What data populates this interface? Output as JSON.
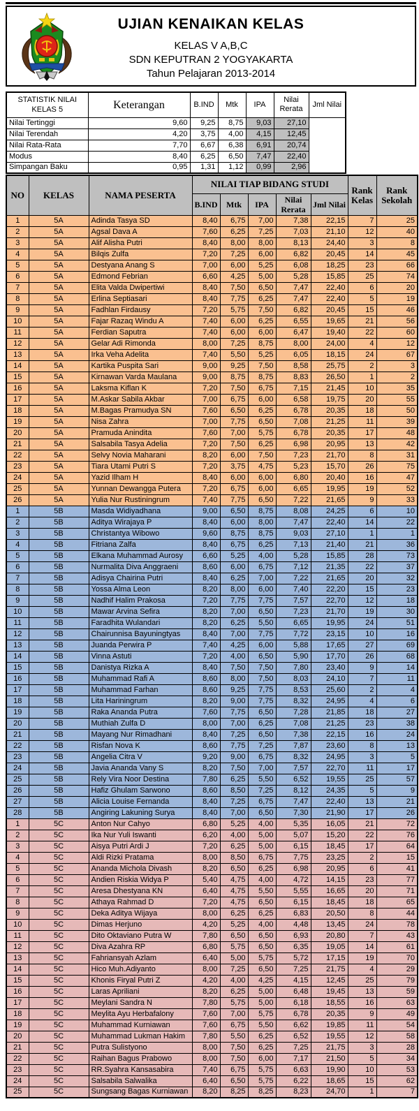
{
  "header": {
    "title": "UJIAN KENAIKAN KELAS",
    "subtitle1": "KELAS V A,B,C",
    "subtitle2": "SDN KEPUTRAN 2 YOGYAKARTA",
    "subtitle3": "Tahun Pelajaran 2013-2014"
  },
  "icons": {
    "logo": "school-crest"
  },
  "colors": {
    "class_5a_band": "#FAC090",
    "class_5b_band": "#9DB7DB",
    "class_5c_band": "#E6B9B8",
    "header_gray": "#BFBFBF",
    "stats_gray": "#BFBFBF",
    "border": "#000000"
  },
  "stats": {
    "row_label": "STATISTIK NILAI KELAS 5",
    "keterangan_label": "Keterangan",
    "columns": [
      "B.IND",
      "Mtk",
      "IPA",
      "Nilai Rerata",
      "Jml Nilai"
    ],
    "rows": [
      {
        "label": "Nilai Tertinggi",
        "values": [
          "9,60",
          "9,25",
          "8,75",
          "9,03",
          "27,10"
        ]
      },
      {
        "label": "Nilai Terendah",
        "values": [
          "4,20",
          "3,75",
          "4,00",
          "4,15",
          "12,45"
        ]
      },
      {
        "label": "Nilai Rata-Rata",
        "values": [
          "7,70",
          "6,67",
          "6,38",
          "6,91",
          "20,74"
        ]
      },
      {
        "label": "Modus",
        "values": [
          "8,40",
          "6,25",
          "6,50",
          "7,47",
          "22,40"
        ]
      },
      {
        "label": "Simpangan Baku",
        "values": [
          "0,95",
          "1,31",
          "1,12",
          "0,99",
          "2,96"
        ]
      }
    ]
  },
  "main_table": {
    "headers": {
      "no": "NO",
      "kelas": "KELAS",
      "nama": "NAMA PESERTA",
      "group": "NILAI TIAP BIDANG STUDI",
      "sub": [
        "B.IND",
        "Mtk",
        "IPA",
        "Nilai Rerata",
        "Jml Nilai"
      ],
      "rank_kelas": "Rank Kelas",
      "rank_sekolah": "Rank Sekolah"
    },
    "sections": [
      {
        "kelas": "5A",
        "color": "#FAC090",
        "rows": [
          [
            "1",
            "Adinda Tasya SD",
            "8,40",
            "6,75",
            "7,00",
            "7,38",
            "22,15",
            "7",
            "25"
          ],
          [
            "2",
            "Agsal Dava A",
            "7,60",
            "6,25",
            "7,25",
            "7,03",
            "21,10",
            "12",
            "40"
          ],
          [
            "3",
            "Alif Alisha Putri",
            "8,40",
            "8,00",
            "8,00",
            "8,13",
            "24,40",
            "3",
            "8"
          ],
          [
            "4",
            "Bilqis Zulfa",
            "7,20",
            "7,25",
            "6,00",
            "6,82",
            "20,45",
            "14",
            "45"
          ],
          [
            "5",
            "Destyana Anang S",
            "7,00",
            "6,00",
            "5,25",
            "6,08",
            "18,25",
            "23",
            "66"
          ],
          [
            "6",
            "Edmond Febrian",
            "6,60",
            "4,25",
            "5,00",
            "5,28",
            "15,85",
            "25",
            "74"
          ],
          [
            "7",
            "Elita Valda Dwipertiwi",
            "8,40",
            "7,50",
            "6,50",
            "7,47",
            "22,40",
            "6",
            "20"
          ],
          [
            "8",
            "Erlina Septiasari",
            "8,40",
            "7,75",
            "6,25",
            "7,47",
            "22,40",
            "5",
            "19"
          ],
          [
            "9",
            "Fadhlan Firdausy",
            "7,20",
            "5,75",
            "7,50",
            "6,82",
            "20,45",
            "15",
            "46"
          ],
          [
            "10",
            "Fajar Razaq Windu A",
            "7,40",
            "6,00",
            "6,25",
            "6,55",
            "19,65",
            "21",
            "56"
          ],
          [
            "11",
            "Ferdian Saputra",
            "7,40",
            "6,00",
            "6,00",
            "6,47",
            "19,40",
            "22",
            "60"
          ],
          [
            "12",
            "Gelar Adi Rimonda",
            "8,00",
            "7,25",
            "8,75",
            "8,00",
            "24,00",
            "4",
            "12"
          ],
          [
            "13",
            "Irka Veha Adelita",
            "7,40",
            "5,50",
            "5,25",
            "6,05",
            "18,15",
            "24",
            "67"
          ],
          [
            "14",
            "Kartika Puspita Sari",
            "9,00",
            "9,25",
            "7,50",
            "8,58",
            "25,75",
            "2",
            "3"
          ],
          [
            "15",
            "Kirnawan Varda Maulana",
            "9,00",
            "8,75",
            "8,75",
            "8,83",
            "26,50",
            "1",
            "2"
          ],
          [
            "16",
            "Laksma Kiflan K",
            "7,20",
            "7,50",
            "6,75",
            "7,15",
            "21,45",
            "10",
            "35"
          ],
          [
            "17",
            "M.Askar Sabila Akbar",
            "7,00",
            "6,75",
            "6,00",
            "6,58",
            "19,75",
            "20",
            "55"
          ],
          [
            "18",
            "M.Bagas Pramudya SN",
            "7,60",
            "6,50",
            "6,25",
            "6,78",
            "20,35",
            "18",
            "50"
          ],
          [
            "19",
            "Nisa Zahra",
            "7,00",
            "7,75",
            "6,50",
            "7,08",
            "21,25",
            "11",
            "39"
          ],
          [
            "20",
            "Pramuda Anindita",
            "7,60",
            "7,00",
            "5,75",
            "6,78",
            "20,35",
            "17",
            "48"
          ],
          [
            "21",
            "Salsabila Tasya Adelia",
            "7,20",
            "7,50",
            "6,25",
            "6,98",
            "20,95",
            "13",
            "42"
          ],
          [
            "22",
            "Selvy Novia Maharani",
            "8,20",
            "6,00",
            "7,50",
            "7,23",
            "21,70",
            "8",
            "31"
          ],
          [
            "23",
            "Tiara Utami Putri S",
            "7,20",
            "3,75",
            "4,75",
            "5,23",
            "15,70",
            "26",
            "75"
          ],
          [
            "24",
            "Yazid Ilham H",
            "8,40",
            "6,00",
            "6,00",
            "6,80",
            "20,40",
            "16",
            "47"
          ],
          [
            "25",
            "Yunnan Dewangga Putera",
            "7,20",
            "6,75",
            "6,00",
            "6,65",
            "19,95",
            "19",
            "52"
          ],
          [
            "26",
            "Yulia Nur Rustiningrum",
            "7,40",
            "7,75",
            "6,50",
            "7,22",
            "21,65",
            "9",
            "33"
          ]
        ]
      },
      {
        "kelas": "5B",
        "color": "#9DB7DB",
        "rows": [
          [
            "1",
            "Masda Widiyadhana",
            "9,00",
            "6,50",
            "8,75",
            "8,08",
            "24,25",
            "6",
            "10"
          ],
          [
            "2",
            "Aditya Wirajaya P",
            "8,40",
            "6,00",
            "8,00",
            "7,47",
            "22,40",
            "14",
            "22"
          ],
          [
            "3",
            "Christantya Wibowo",
            "9,60",
            "8,75",
            "8,75",
            "9,03",
            "27,10",
            "1",
            "1"
          ],
          [
            "4",
            "Fitriana Zalfa",
            "8,40",
            "6,75",
            "6,25",
            "7,13",
            "21,40",
            "21",
            "36"
          ],
          [
            "5",
            "Elkana Muhammad Aurosy",
            "6,60",
            "5,25",
            "4,00",
            "5,28",
            "15,85",
            "28",
            "73"
          ],
          [
            "6",
            "Nurmalita Diva Anggraeni",
            "8,60",
            "6,00",
            "6,75",
            "7,12",
            "21,35",
            "22",
            "37"
          ],
          [
            "7",
            "Adisya Chairina Putri",
            "8,40",
            "6,25",
            "7,00",
            "7,22",
            "21,65",
            "20",
            "32"
          ],
          [
            "8",
            "Yossa Alma Leon",
            "8,20",
            "8,00",
            "6,00",
            "7,40",
            "22,20",
            "15",
            "23"
          ],
          [
            "9",
            "Nadhif Halim Prakosa",
            "7,20",
            "7,75",
            "7,75",
            "7,57",
            "22,70",
            "12",
            "18"
          ],
          [
            "10",
            "Mawar Arvina Sefira",
            "8,20",
            "7,00",
            "6,50",
            "7,23",
            "21,70",
            "19",
            "30"
          ],
          [
            "11",
            "Faradhita Wulandari",
            "8,20",
            "6,25",
            "5,50",
            "6,65",
            "19,95",
            "24",
            "51"
          ],
          [
            "12",
            "Chairunnisa Bayuningtyas",
            "8,40",
            "7,00",
            "7,75",
            "7,72",
            "23,15",
            "10",
            "16"
          ],
          [
            "13",
            "Juanda Perwira P",
            "7,40",
            "4,25",
            "6,00",
            "5,88",
            "17,65",
            "27",
            "69"
          ],
          [
            "14",
            "Vinna Astuti",
            "7,20",
            "4,00",
            "6,50",
            "5,90",
            "17,70",
            "26",
            "68"
          ],
          [
            "15",
            "Danistya Rizka A",
            "8,40",
            "7,50",
            "7,50",
            "7,80",
            "23,40",
            "9",
            "14"
          ],
          [
            "16",
            "Muhammad Rafi A",
            "8,60",
            "8,00",
            "7,50",
            "8,03",
            "24,10",
            "7",
            "11"
          ],
          [
            "17",
            "Muhammad Farhan",
            "8,60",
            "9,25",
            "7,75",
            "8,53",
            "25,60",
            "2",
            "4"
          ],
          [
            "18",
            "Lita Hariningrum",
            "8,20",
            "9,00",
            "7,75",
            "8,32",
            "24,95",
            "4",
            "6"
          ],
          [
            "19",
            "Raka Ananda Putra",
            "7,60",
            "7,75",
            "6,50",
            "7,28",
            "21,85",
            "18",
            "27"
          ],
          [
            "20",
            "Muthiah Zulfa D",
            "8,00",
            "7,00",
            "6,25",
            "7,08",
            "21,25",
            "23",
            "38"
          ],
          [
            "21",
            "Mayang Nur Rimadhani",
            "8,40",
            "7,25",
            "6,50",
            "7,38",
            "22,15",
            "16",
            "24"
          ],
          [
            "22",
            "Risfan Nova K",
            "8,60",
            "7,75",
            "7,25",
            "7,87",
            "23,60",
            "8",
            "13"
          ],
          [
            "23",
            "Angelia Citra V",
            "9,20",
            "9,00",
            "6,75",
            "8,32",
            "24,95",
            "3",
            "5"
          ],
          [
            "24",
            "Javia Ananda Vany S",
            "8,20",
            "7,50",
            "7,00",
            "7,57",
            "22,70",
            "11",
            "17"
          ],
          [
            "25",
            "Rely Vira Noor Destina",
            "7,80",
            "6,25",
            "5,50",
            "6,52",
            "19,55",
            "25",
            "57"
          ],
          [
            "26",
            "Hafiz Ghulam Sarwono",
            "8,60",
            "8,50",
            "7,25",
            "8,12",
            "24,35",
            "5",
            "9"
          ],
          [
            "27",
            "Alicia Louise Fernanda",
            "8,40",
            "7,25",
            "6,75",
            "7,47",
            "22,40",
            "13",
            "21"
          ],
          [
            "28",
            "Angiring Lakuning Surya",
            "8,40",
            "7,00",
            "6,50",
            "7,30",
            "21,90",
            "17",
            "26"
          ]
        ]
      },
      {
        "kelas": "5C",
        "color": "#E6B9B8",
        "rows": [
          [
            "1",
            "Anton Nur Cahyo",
            "6,80",
            "5,25",
            "4,00",
            "5,35",
            "16,05",
            "21",
            "72"
          ],
          [
            "2",
            "Ika Nur Yuli Iswanti",
            "6,20",
            "4,00",
            "5,00",
            "5,07",
            "15,20",
            "22",
            "76"
          ],
          [
            "3",
            "Aisya Putri Ardi J",
            "7,20",
            "6,25",
            "5,00",
            "6,15",
            "18,45",
            "17",
            "64"
          ],
          [
            "4",
            "Aldi Rizki Pratama",
            "8,00",
            "8,50",
            "6,75",
            "7,75",
            "23,25",
            "2",
            "15"
          ],
          [
            "5",
            "Ananda Michola Divash",
            "8,20",
            "6,50",
            "6,25",
            "6,98",
            "20,95",
            "6",
            "41"
          ],
          [
            "6",
            "Andien Riskia Widya P",
            "5,40",
            "4,75",
            "4,00",
            "4,72",
            "14,15",
            "23",
            "77"
          ],
          [
            "7",
            "Aresa Dhestyana KN",
            "6,40",
            "4,75",
            "5,50",
            "5,55",
            "16,65",
            "20",
            "71"
          ],
          [
            "8",
            "Athaya Rahmad D",
            "7,20",
            "4,75",
            "6,50",
            "6,15",
            "18,45",
            "18",
            "65"
          ],
          [
            "9",
            "Deka Aditya Wijaya",
            "8,00",
            "6,25",
            "6,25",
            "6,83",
            "20,50",
            "8",
            "44"
          ],
          [
            "10",
            "Dimas Herjuno",
            "4,20",
            "5,25",
            "4,00",
            "4,48",
            "13,45",
            "24",
            "78"
          ],
          [
            "11",
            "Dito Oktaviano Putra W",
            "7,80",
            "6,50",
            "6,50",
            "6,93",
            "20,80",
            "7",
            "43"
          ],
          [
            "12",
            "Diva Azahra RP",
            "6,80",
            "5,75",
            "6,50",
            "6,35",
            "19,05",
            "14",
            "61"
          ],
          [
            "13",
            "Fahriansyah Azlam",
            "6,40",
            "5,00",
            "5,75",
            "5,72",
            "17,15",
            "19",
            "70"
          ],
          [
            "14",
            "Hico Muh.Adiyanto",
            "8,00",
            "7,25",
            "6,50",
            "7,25",
            "21,75",
            "4",
            "29"
          ],
          [
            "15",
            "Khonis Firyal Putri Z",
            "4,20",
            "4,00",
            "4,25",
            "4,15",
            "12,45",
            "25",
            "79"
          ],
          [
            "16",
            "Laras Apriliani",
            "8,20",
            "6,25",
            "5,00",
            "6,48",
            "19,45",
            "13",
            "59"
          ],
          [
            "17",
            "Meylani Sandra N",
            "7,80",
            "5,75",
            "5,00",
            "6,18",
            "18,55",
            "16",
            "63"
          ],
          [
            "18",
            "Meylita Ayu Herbafalony",
            "7,60",
            "7,00",
            "5,75",
            "6,78",
            "20,35",
            "9",
            "49"
          ],
          [
            "19",
            "Muhammad Kurniawan",
            "7,60",
            "6,75",
            "5,50",
            "6,62",
            "19,85",
            "11",
            "54"
          ],
          [
            "20",
            "Muhammad Lukman Hakim",
            "7,80",
            "5,50",
            "6,25",
            "6,52",
            "19,55",
            "12",
            "58"
          ],
          [
            "21",
            "Putra Sulistyono",
            "8,00",
            "7,50",
            "6,25",
            "7,25",
            "21,75",
            "3",
            "28"
          ],
          [
            "22",
            "Raihan Bagus Prabowo",
            "8,00",
            "7,50",
            "6,00",
            "7,17",
            "21,50",
            "5",
            "34"
          ],
          [
            "23",
            "RR.Syahra Kansasabira",
            "7,40",
            "6,75",
            "5,75",
            "6,63",
            "19,90",
            "10",
            "53"
          ],
          [
            "24",
            "Salsabila Salwalika",
            "6,40",
            "6,50",
            "5,75",
            "6,22",
            "18,65",
            "15",
            "62"
          ],
          [
            "25",
            "Sungsang Bagas Kurniawan",
            "8,20",
            "8,25",
            "8,25",
            "8,23",
            "24,70",
            "1",
            "7"
          ]
        ]
      }
    ]
  }
}
